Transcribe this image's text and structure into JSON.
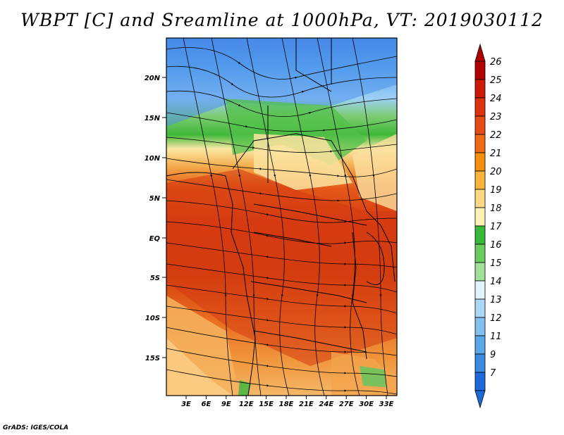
{
  "title": "WBPT [C] and Sreamline at 1000hPa, VT: 2019030112",
  "credit": "GrADS: IGES/COLA",
  "map": {
    "lat_labels": [
      "20N",
      "15N",
      "10N",
      "5N",
      "EQ",
      "5S",
      "10S",
      "15S"
    ],
    "lon_labels": [
      "3E",
      "6E",
      "9E",
      "12E",
      "15E",
      "18E",
      "21E",
      "24E",
      "27E",
      "30E",
      "33E"
    ]
  },
  "colorbar": {
    "labels": [
      "26",
      "25",
      "24",
      "23",
      "22",
      "21",
      "20",
      "19",
      "18",
      "17",
      "16",
      "15",
      "14",
      "13",
      "12",
      "11",
      "9",
      "7"
    ],
    "colors": [
      "#b00000",
      "#cc1a06",
      "#dc320e",
      "#e64c16",
      "#ee6a14",
      "#f4900e",
      "#f8b43c",
      "#fbd884",
      "#fdf2b6",
      "#38b838",
      "#6acc5e",
      "#a0e09a",
      "#e0f6fc",
      "#aad8f6",
      "#82c0f0",
      "#5aa8ea",
      "#3a8ae2",
      "#1e6ad8"
    ]
  }
}
